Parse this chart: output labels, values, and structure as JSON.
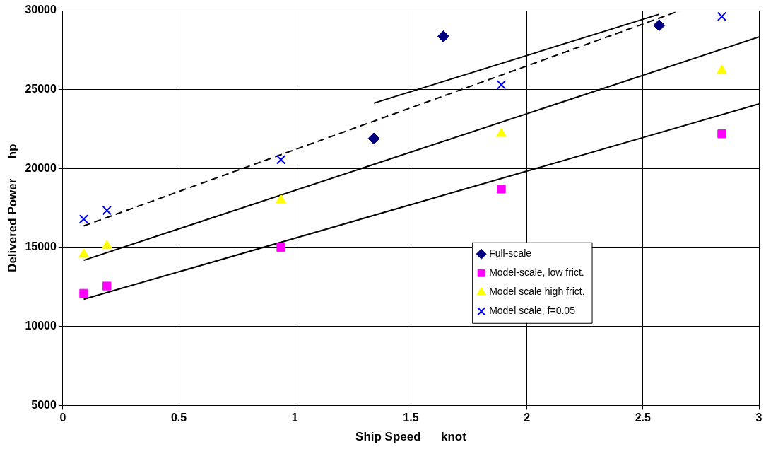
{
  "chart_data": {
    "type": "scatter",
    "xlabel": "Ship Speed      knot",
    "ylabel": "Delivered Power      hp",
    "xlim": [
      0,
      3
    ],
    "xticks": [
      0,
      0.5,
      1,
      1.5,
      2,
      2.5,
      3
    ],
    "ylim": [
      5000,
      30000
    ],
    "yticks": [
      5000,
      10000,
      15000,
      20000,
      25000,
      30000
    ],
    "grid": true,
    "legend": "right",
    "series": [
      {
        "name": "Full-scale",
        "color": "#000080",
        "marker": "diamond",
        "x": [
          1.34,
          1.64,
          2.57
        ],
        "values": [
          21900,
          28370,
          29070
        ]
      },
      {
        "name": "Model-scale, low frict.",
        "color": "#ff00ff",
        "marker": "square",
        "x": [
          0.09,
          0.19,
          0.94,
          1.89,
          2.84
        ],
        "values": [
          12100,
          12560,
          15000,
          18700,
          22200
        ]
      },
      {
        "name": "Model scale high frict.",
        "color": "#ffff00",
        "marker": "triangle",
        "x": [
          0.09,
          0.19,
          0.94,
          1.89,
          2.84
        ],
        "values": [
          14560,
          15100,
          18000,
          22200,
          26200
        ]
      },
      {
        "name": "Model scale, f=0.05",
        "color": "#0000ff",
        "marker": "cross",
        "x": [
          0.09,
          0.19,
          0.94,
          1.89,
          2.84
        ],
        "values": [
          16800,
          17350,
          20560,
          25300,
          29630
        ]
      },
      {
        "type": "line",
        "color": "#000000",
        "line_style": "solid",
        "x": [
          1.34,
          2.57
        ],
        "values": [
          24140,
          29770
        ]
      },
      {
        "type": "line",
        "color": "#000000",
        "line_style": "dashed",
        "x": [
          0.09,
          2.66
        ],
        "values": [
          16370,
          30000
        ]
      },
      {
        "type": "line",
        "color": "#000000",
        "line_style": "solid",
        "x": [
          0.09,
          3
        ],
        "values": [
          14190,
          28330
        ]
      },
      {
        "type": "line",
        "color": "#000000",
        "line_style": "solid",
        "x": [
          0.09,
          3
        ],
        "values": [
          11720,
          24090
        ]
      }
    ]
  }
}
